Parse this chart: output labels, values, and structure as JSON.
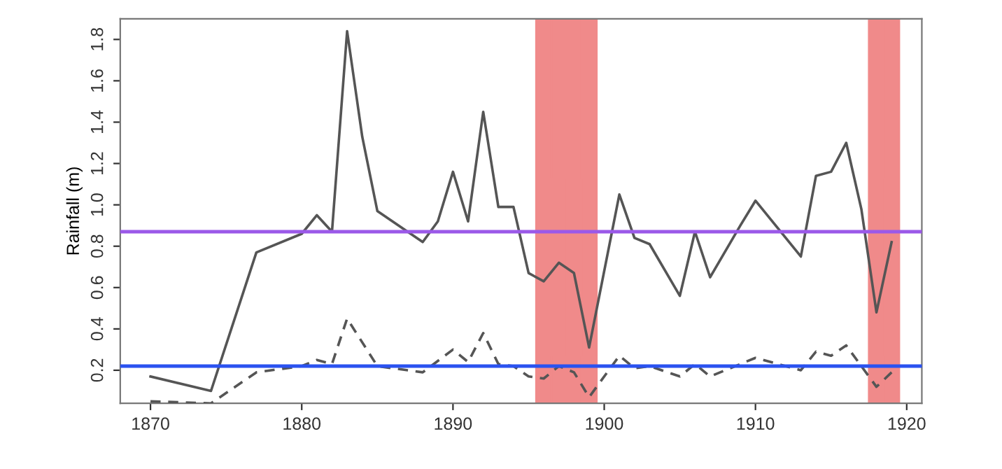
{
  "chart_data": {
    "type": "line",
    "ylabel": "Rainfall (m)",
    "xlim": [
      1868,
      1921
    ],
    "ylim": [
      0.04,
      1.9
    ],
    "xticks": [
      1870,
      1880,
      1890,
      1900,
      1910,
      1920
    ],
    "yticks": [
      0.2,
      0.4,
      0.6,
      0.8,
      {
        "value": 1,
        "label": "1.0"
      },
      1.2,
      1.4,
      1.6,
      1.8
    ],
    "grid": false,
    "legend": false,
    "series": [
      {
        "color": "#555555",
        "line_style": "solid",
        "x": [
          1870,
          1874,
          1877,
          1880,
          1881,
          1882,
          1883,
          1884,
          1885,
          1888,
          1889,
          1890,
          1891,
          1892,
          1893,
          1894,
          1895,
          1896,
          1897,
          1898,
          1899,
          1901,
          1902,
          1903,
          1905,
          1906,
          1907,
          1909,
          1910,
          1913,
          1914,
          1915,
          1916,
          1917,
          1918,
          1919
        ],
        "values": [
          0.17,
          0.1,
          0.77,
          0.86,
          0.95,
          0.87,
          1.84,
          1.33,
          0.97,
          0.82,
          0.92,
          1.16,
          0.92,
          1.45,
          0.99,
          0.99,
          0.67,
          0.63,
          0.72,
          0.67,
          0.31,
          1.05,
          0.84,
          0.81,
          0.56,
          0.87,
          0.65,
          0.9,
          1.02,
          0.75,
          1.14,
          1.16,
          1.3,
          0.98,
          0.48,
          0.82
        ]
      },
      {
        "color": "#555555",
        "line_style": "dashed",
        "x": [
          1870,
          1874,
          1877,
          1880,
          1881,
          1882,
          1883,
          1885,
          1888,
          1890,
          1891,
          1892,
          1893,
          1894,
          1895,
          1896,
          1897,
          1898,
          1899,
          1901,
          1902,
          1903,
          1905,
          1906,
          1907,
          1909,
          1910,
          1913,
          1914,
          1915,
          1916,
          1918,
          1919
        ],
        "values": [
          0.05,
          0.04,
          0.19,
          0.22,
          0.25,
          0.23,
          0.45,
          0.22,
          0.19,
          0.3,
          0.24,
          0.38,
          0.23,
          0.22,
          0.17,
          0.16,
          0.22,
          0.19,
          0.07,
          0.27,
          0.21,
          0.22,
          0.17,
          0.23,
          0.17,
          0.23,
          0.26,
          0.2,
          0.29,
          0.27,
          0.32,
          0.12,
          0.19
        ]
      }
    ],
    "ref_lines": [
      {
        "axis": "y",
        "value": 0.87,
        "color": "#9b59e8",
        "line_style": "solid"
      },
      {
        "axis": "y",
        "value": 0.22,
        "color": "#2a52f0",
        "line_style": "solid"
      }
    ],
    "bands": [
      {
        "axis": "x",
        "from": 1895.5,
        "to": 1896.5,
        "color": "#f08a8a"
      },
      {
        "axis": "x",
        "from": 1896.5,
        "to": 1897.5,
        "color": "#f08a8a"
      },
      {
        "axis": "x",
        "from": 1897.5,
        "to": 1898.5,
        "color": "#f08a8a"
      },
      {
        "axis": "x",
        "from": 1898.5,
        "to": 1899.5,
        "color": "#f08a8a"
      },
      {
        "axis": "x",
        "from": 1917.5,
        "to": 1918.5,
        "color": "#f08a8a"
      },
      {
        "axis": "x",
        "from": 1918.5,
        "to": 1919.5,
        "color": "#f08a8a"
      }
    ]
  }
}
